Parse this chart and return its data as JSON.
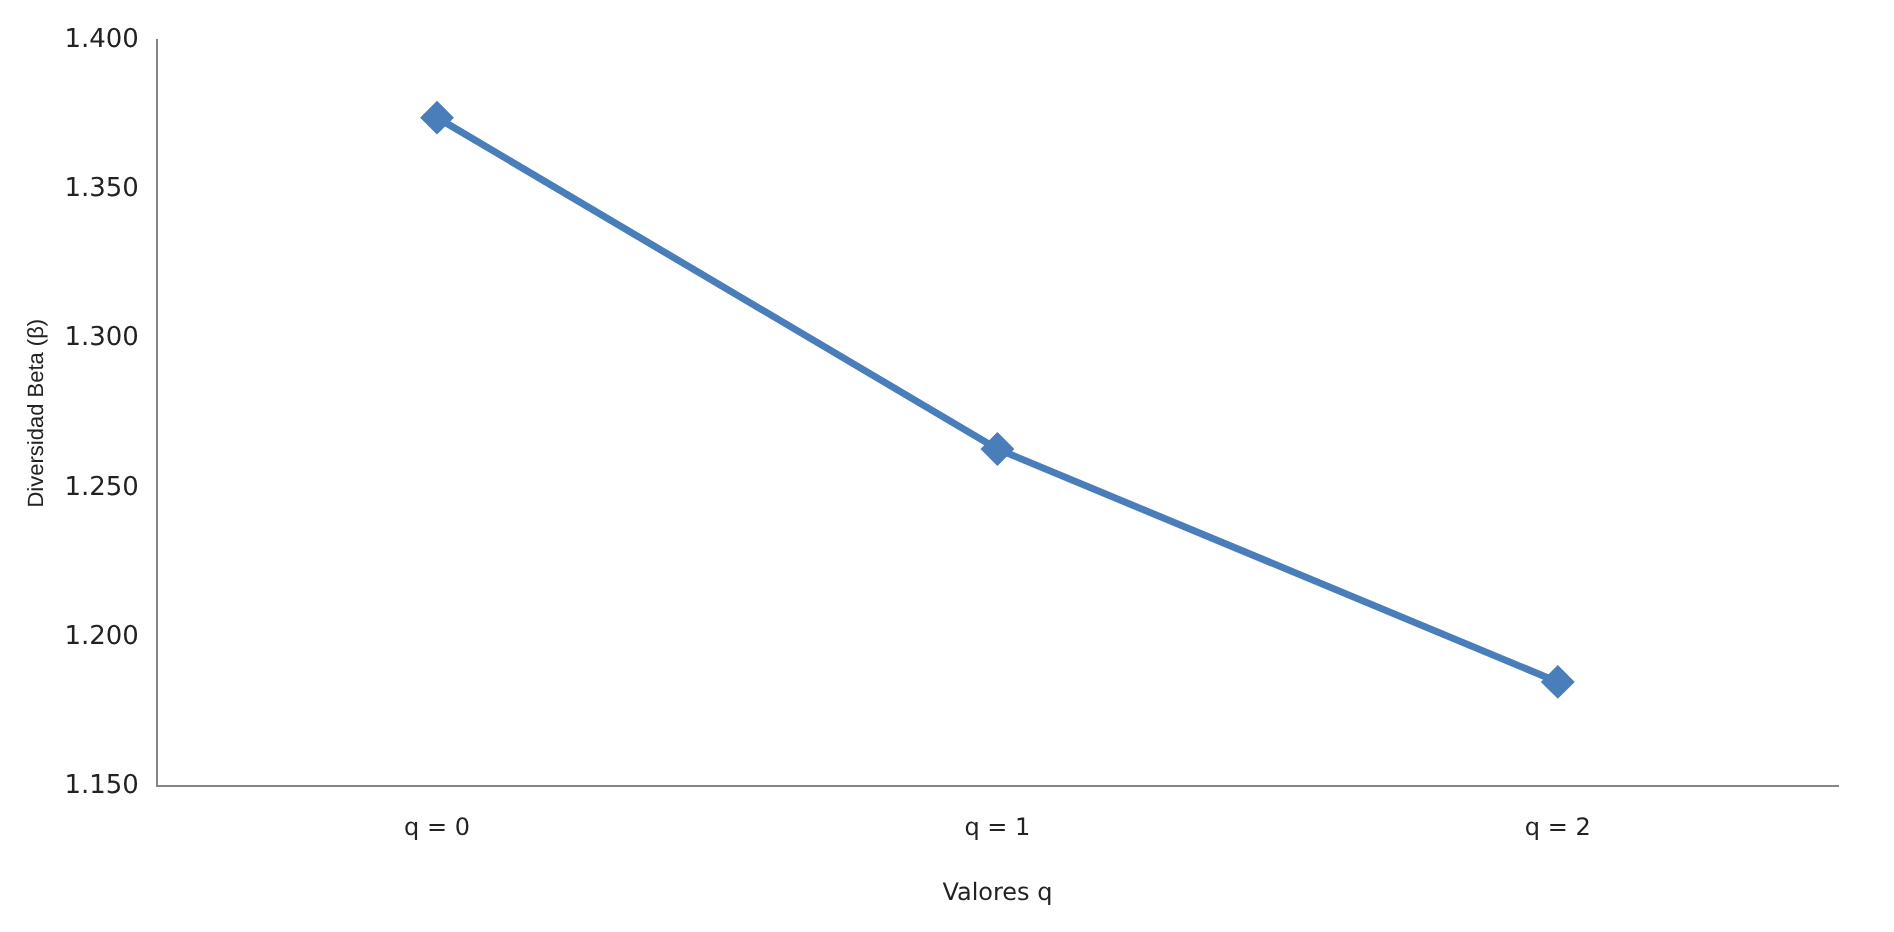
{
  "chart_data": {
    "type": "line",
    "xlabel": "Valores q",
    "ylabel": "Diversidad Beta (β)",
    "categories": [
      "q = 0",
      "q = 1",
      "q = 2"
    ],
    "series": [
      {
        "color": "#4a7ebb",
        "values": [
          1.374,
          1.263,
          1.185
        ]
      }
    ],
    "ylim": [
      1.15,
      1.4
    ],
    "yticks": [
      {
        "value": 1.15,
        "label": "1.150"
      },
      {
        "value": 1.2,
        "label": "1.200"
      },
      {
        "value": 1.25,
        "label": "1.250"
      },
      {
        "value": 1.3,
        "label": "1.300"
      },
      {
        "value": 1.35,
        "label": "1.350"
      },
      {
        "value": 1.4,
        "label": "1.400"
      }
    ],
    "grid": false,
    "legend": false,
    "marker": "diamond",
    "line_style": "solid"
  }
}
